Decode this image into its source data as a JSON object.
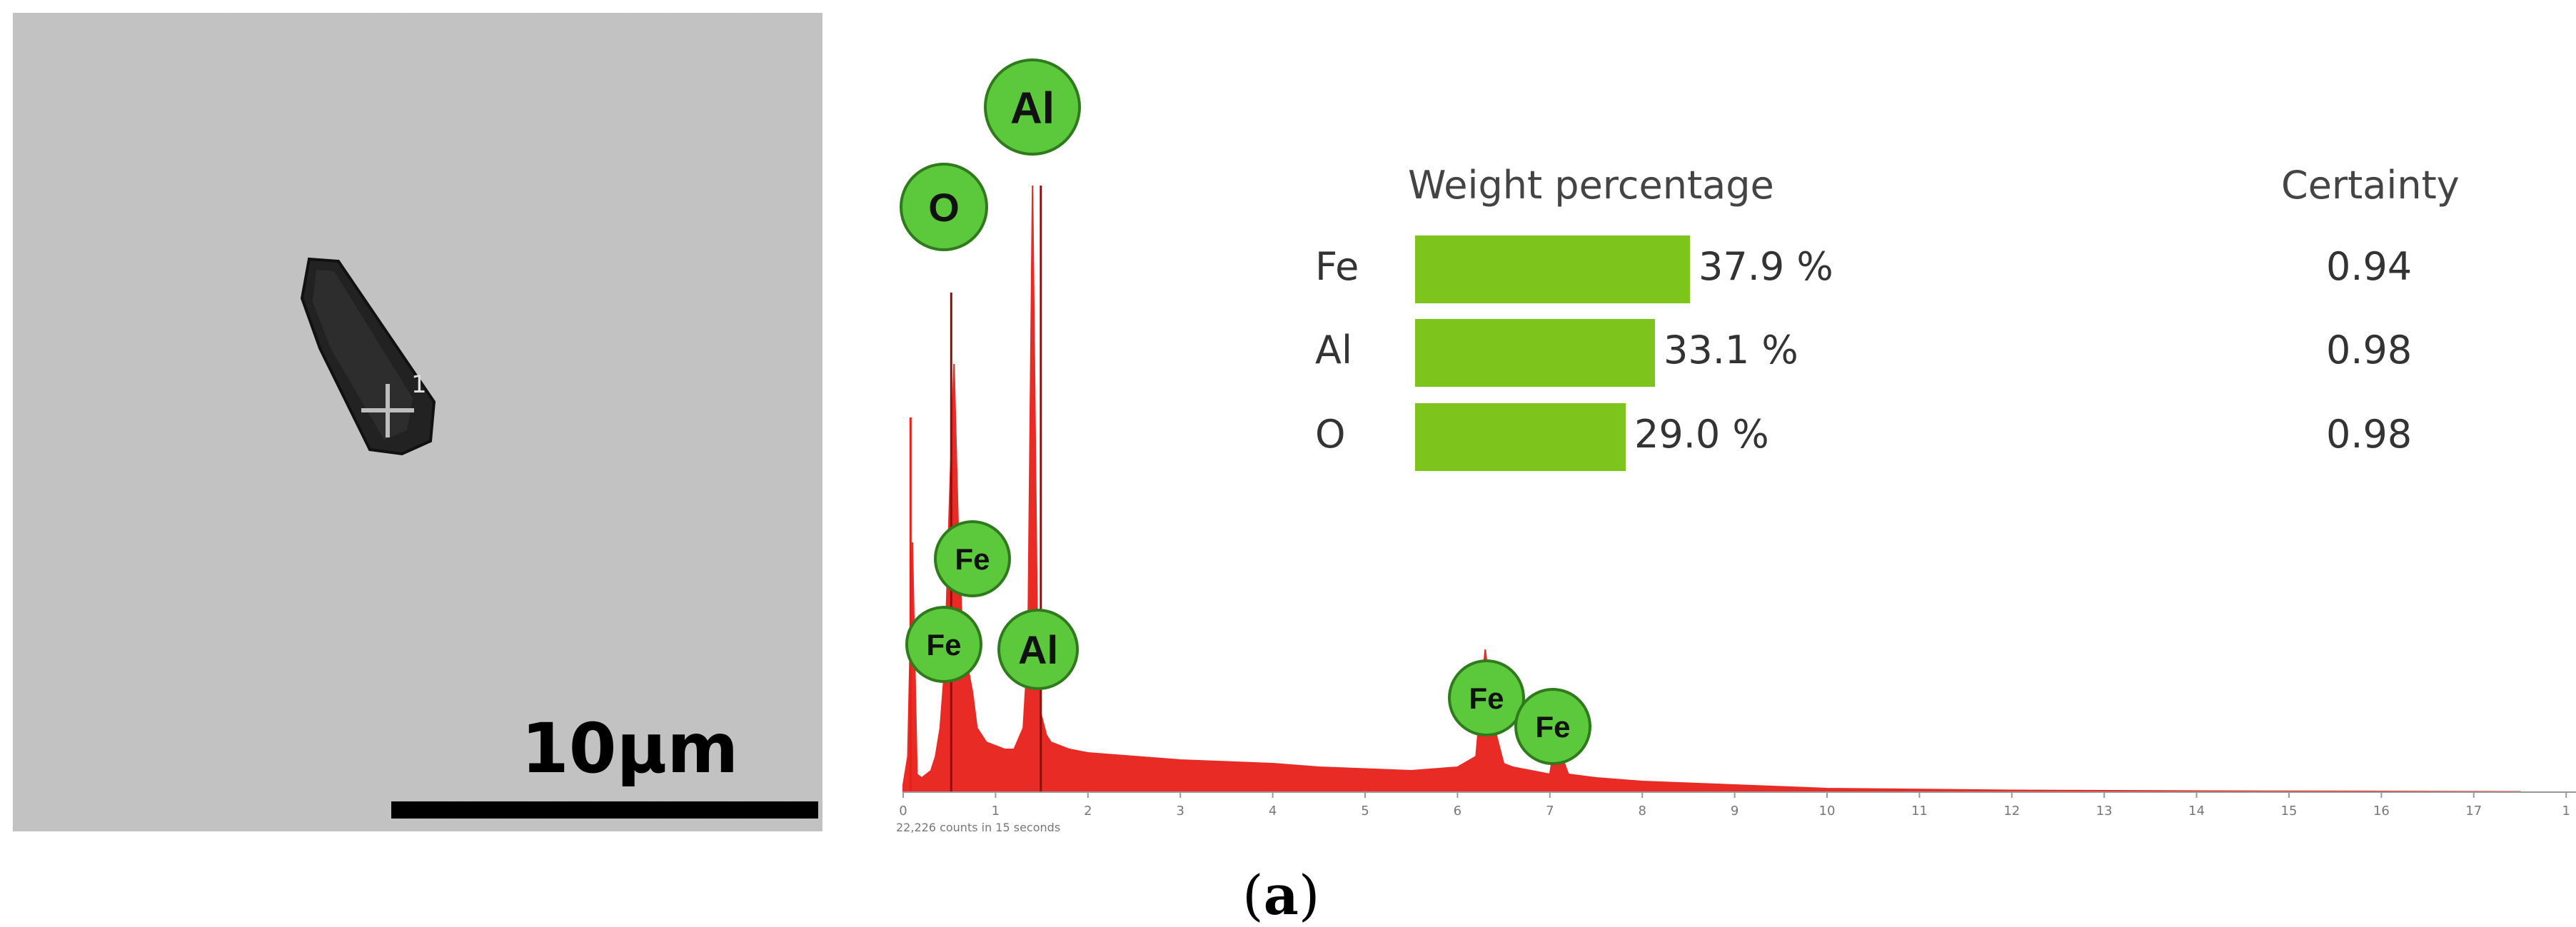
{
  "panel_a": {
    "sem": {
      "scale_label": "10μm",
      "marker_label": "1"
    },
    "chart_data": {
      "type": "line",
      "x": [
        0,
        0.05,
        0.1,
        0.15,
        0.2,
        0.25,
        0.3,
        0.35,
        0.4,
        0.45,
        0.5,
        0.55,
        0.6,
        0.65,
        0.7,
        0.75,
        0.8,
        0.9,
        1,
        1.1,
        1.2,
        1.3,
        1.35,
        1.4,
        1.45,
        1.49,
        1.55,
        1.6,
        1.7,
        1.8,
        2,
        2.5,
        3,
        3.5,
        4,
        4.5,
        5,
        5.5,
        6,
        6.2,
        6.3,
        6.4,
        6.5,
        6.6,
        6.8,
        7,
        7.06,
        7.2,
        7.5,
        8,
        9,
        10,
        12,
        14,
        16,
        17.5
      ],
      "y": [
        2,
        10,
        70,
        5,
        4,
        5,
        6,
        10,
        18,
        35,
        80,
        120,
        70,
        40,
        35,
        28,
        18,
        14,
        13,
        12,
        12,
        18,
        40,
        170,
        50,
        22,
        16,
        14,
        13,
        12,
        11,
        10,
        9,
        8.5,
        8,
        7,
        6.5,
        6,
        7,
        10,
        40,
        18,
        8,
        7,
        6,
        5,
        15,
        5,
        4,
        3,
        2,
        1,
        0.5,
        0.3,
        0.2,
        0.1
      ],
      "xlim": [
        0,
        17.5
      ],
      "xticks": [
        "0",
        "1",
        "2",
        "3",
        "4",
        "5",
        "6",
        "7",
        "8",
        "9",
        "10",
        "11",
        "12",
        "13",
        "14",
        "15",
        "16",
        "17",
        "1"
      ],
      "ylim": [
        0,
        180
      ],
      "x_annotation": "22,226 counts in 15 seconds",
      "peak_labels": [
        {
          "label": "O",
          "x": 0.52,
          "height": 140
        },
        {
          "label": "Al",
          "x": 1.49,
          "height": 170
        },
        {
          "label": "Fe",
          "x": 0.71,
          "height": 55
        },
        {
          "label": "Fe",
          "x": 0.45,
          "height": 38
        },
        {
          "label": "Al",
          "x": 1.49,
          "height": 38
        },
        {
          "label": "Fe",
          "x": 6.4,
          "height": 22
        },
        {
          "label": "Fe",
          "x": 7.06,
          "height": 15
        }
      ],
      "line_color": "#e8201a",
      "label_color": "#5cc83c",
      "composition": {
        "weight_header": "Weight percentage",
        "certainty_header": "Certainty",
        "bar_color": "#7dc41d",
        "max_value": 37.9,
        "rows": [
          {
            "element": "Fe",
            "value": 37.9,
            "label": "37.9 %",
            "certainty": "0.94"
          },
          {
            "element": "Al",
            "value": 33.1,
            "label": "33.1 %",
            "certainty": "0.98"
          },
          {
            "element": "O",
            "value": 29.0,
            "label": "29.0 %",
            "certainty": "0.98"
          }
        ]
      }
    },
    "caption": {
      "open": "(",
      "letter": "a",
      "close": ")"
    }
  }
}
